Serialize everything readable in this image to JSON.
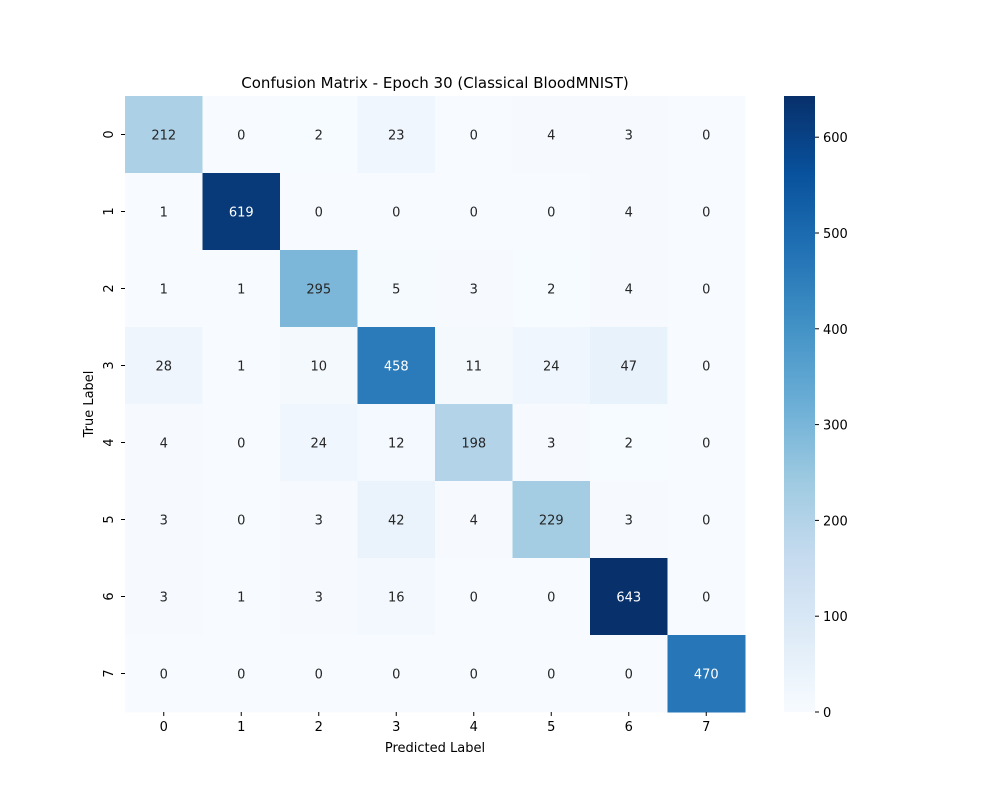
{
  "chart_data": {
    "type": "heatmap",
    "title": "Confusion Matrix - Epoch 30 (Classical BloodMNIST)",
    "xlabel": "Predicted Label",
    "ylabel": "True Label",
    "x_categories": [
      "0",
      "1",
      "2",
      "3",
      "4",
      "5",
      "6",
      "7"
    ],
    "y_categories": [
      "0",
      "1",
      "2",
      "3",
      "4",
      "5",
      "6",
      "7"
    ],
    "values": [
      [
        212,
        0,
        2,
        23,
        0,
        4,
        3,
        0
      ],
      [
        1,
        619,
        0,
        0,
        0,
        0,
        4,
        0
      ],
      [
        1,
        1,
        295,
        5,
        3,
        2,
        4,
        0
      ],
      [
        28,
        1,
        10,
        458,
        11,
        24,
        47,
        0
      ],
      [
        4,
        0,
        24,
        12,
        198,
        3,
        2,
        0
      ],
      [
        3,
        0,
        3,
        42,
        4,
        229,
        3,
        0
      ],
      [
        3,
        1,
        3,
        16,
        0,
        0,
        643,
        0
      ],
      [
        0,
        0,
        0,
        0,
        0,
        0,
        0,
        470
      ]
    ],
    "colormap": "Blues",
    "color_range": [
      0,
      643
    ],
    "colorbar_ticks": [
      0,
      100,
      200,
      300,
      400,
      500,
      600
    ],
    "grid": false
  }
}
